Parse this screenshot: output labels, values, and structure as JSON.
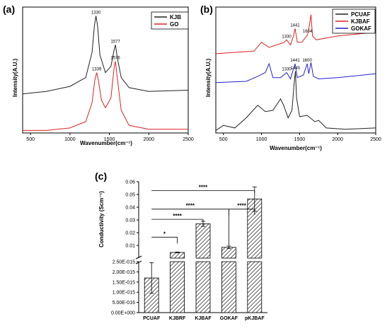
{
  "chart_data": [
    {
      "panel": "(a)",
      "type": "line",
      "xlabel": "Wavenumber(cm⁻¹)",
      "ylabel": "Intensity(A.U.)",
      "xlim": [
        400,
        2500
      ],
      "xticks": [
        "500",
        "1000",
        "1500",
        "2000",
        "2500"
      ],
      "legend_position": "top-right",
      "series": [
        {
          "name": "KJB",
          "color": "#222222",
          "x": [
            400,
            700,
            1000,
            1200,
            1280,
            1310,
            1330,
            1350,
            1380,
            1450,
            1520,
            1560,
            1577,
            1600,
            1650,
            1750,
            2000,
            2500
          ],
          "y": [
            0.31,
            0.33,
            0.37,
            0.44,
            0.64,
            0.85,
            0.93,
            0.85,
            0.62,
            0.48,
            0.53,
            0.66,
            0.7,
            0.6,
            0.44,
            0.36,
            0.33,
            0.34
          ]
        },
        {
          "name": "GO",
          "color": "#dd2222",
          "x": [
            400,
            700,
            1000,
            1200,
            1280,
            1315,
            1339,
            1360,
            1400,
            1450,
            1520,
            1560,
            1576,
            1600,
            1650,
            1750,
            2000,
            2500
          ],
          "y": [
            0.02,
            0.02,
            0.04,
            0.09,
            0.24,
            0.42,
            0.48,
            0.42,
            0.26,
            0.2,
            0.28,
            0.52,
            0.57,
            0.44,
            0.18,
            0.06,
            0.03,
            0.03
          ]
        }
      ],
      "annotations": [
        {
          "text": "1330",
          "x": 1330,
          "y": 0.93
        },
        {
          "text": "1577",
          "x": 1577,
          "y": 0.7
        },
        {
          "text": "1339",
          "x": 1339,
          "y": 0.48
        },
        {
          "text": "1576",
          "x": 1576,
          "y": 0.57
        }
      ]
    },
    {
      "panel": "(b)",
      "type": "line",
      "xlabel": "Wavenumber(cm⁻¹)",
      "ylabel": "Intensity(A.U.)",
      "xlim": [
        400,
        2500
      ],
      "xticks": [
        "500",
        "1000",
        "1500",
        "2000",
        "2500"
      ],
      "legend_position": "top-right",
      "series": [
        {
          "name": "PCUAF",
          "color": "#222222",
          "x": [
            400,
            500,
            650,
            800,
            950,
            1050,
            1150,
            1250,
            1290,
            1350,
            1400,
            1430,
            1445,
            1460,
            1500,
            1600,
            1700,
            1750,
            1850,
            2100,
            2500
          ],
          "y": [
            0.02,
            0.06,
            0.04,
            0.12,
            0.22,
            0.17,
            0.18,
            0.27,
            0.22,
            0.12,
            0.18,
            0.4,
            0.49,
            0.28,
            0.13,
            0.14,
            0.09,
            0.1,
            0.04,
            0.03,
            0.04
          ]
        },
        {
          "name": "KJBAF",
          "color": "#dd2222",
          "x": [
            400,
            900,
            1000,
            1100,
            1200,
            1300,
            1330,
            1380,
            1420,
            1441,
            1470,
            1530,
            1604,
            1630,
            1650,
            1670,
            1720,
            2000,
            2500
          ],
          "y": [
            0.63,
            0.65,
            0.72,
            0.68,
            0.7,
            0.72,
            0.74,
            0.7,
            0.77,
            0.83,
            0.72,
            0.72,
            0.78,
            0.86,
            0.94,
            0.77,
            0.74,
            0.77,
            0.8
          ]
        },
        {
          "name": "GOKAF",
          "color": "#2222cc",
          "x": [
            400,
            800,
            950,
            1050,
            1100,
            1150,
            1250,
            1330,
            1380,
            1420,
            1441,
            1470,
            1550,
            1600,
            1620,
            1650,
            1680,
            1750,
            2000,
            2500
          ],
          "y": [
            0.4,
            0.41,
            0.45,
            0.48,
            0.55,
            0.44,
            0.44,
            0.48,
            0.43,
            0.51,
            0.55,
            0.44,
            0.46,
            0.55,
            0.47,
            0.56,
            0.45,
            0.43,
            0.44,
            0.47
          ]
        }
      ],
      "annotations": [
        {
          "text": "1441",
          "x": 1441,
          "y": 0.83
        },
        {
          "text": "1330",
          "x": 1330,
          "y": 0.74
        },
        {
          "text": "1604",
          "x": 1604,
          "y": 0.78
        },
        {
          "text": "1600",
          "x": 1600,
          "y": 0.55
        },
        {
          "text": "1330",
          "x": 1330,
          "y": 0.48
        },
        {
          "text": "1441",
          "x": 1441,
          "y": 0.55
        },
        {
          "text": "1445",
          "x": 1445,
          "y": 0.49
        }
      ]
    },
    {
      "panel": "(c)",
      "type": "bar",
      "ylabel": "Conductivity (Scm⁻¹)",
      "categories": [
        "PCUAF",
        "KJBRF",
        "KJBAF",
        "GOKAF",
        "pKJBAF"
      ],
      "values": [
        1.7e-15,
        0.0045,
        0.027,
        0.0085,
        0.0465
      ],
      "errors": [
        7.5e-16,
        0.0003,
        0.002,
        0.001,
        0.0095
      ],
      "upper_axis": {
        "ylim": [
          0.0,
          0.06
        ],
        "ticks": [
          "0.01",
          "0.02",
          "0.03",
          "0.04",
          "0.05",
          "0.06"
        ]
      },
      "lower_axis": {
        "ylim": [
          0,
          2.5e-15
        ],
        "ticks": [
          "0.00E+000",
          "5.00E-016",
          "1.00E-015",
          "1.50E-015",
          "2.00E-015",
          "2.50E-015"
        ]
      },
      "significance": [
        {
          "from": "PCUAF",
          "to": "KJBRF",
          "label": "*"
        },
        {
          "from": "PCUAF",
          "to": "KJBAF",
          "label": "****"
        },
        {
          "from": "PCUAF",
          "to": "GOKAF",
          "label": "****"
        },
        {
          "from": "GOKAF",
          "to": "pKJBAF",
          "label": "****"
        },
        {
          "from": "PCUAF",
          "to": "pKJBAF",
          "label": "****"
        }
      ]
    }
  ]
}
